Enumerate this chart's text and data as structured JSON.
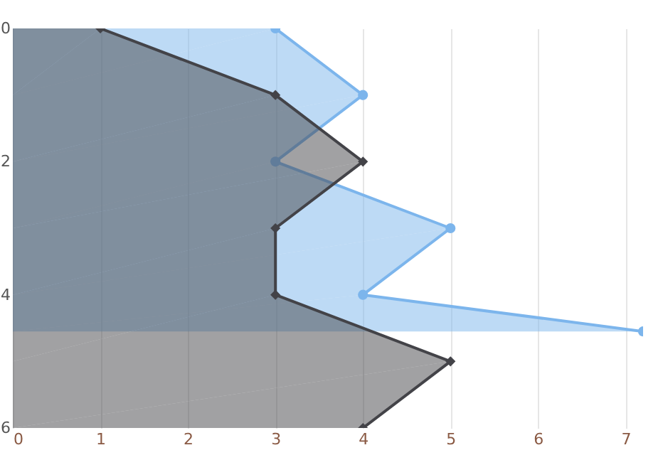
{
  "chart_data": {
    "type": "area",
    "orientation": "horizontal",
    "xlim": [
      0,
      7.2
    ],
    "xticks": [
      0,
      1,
      2,
      3,
      4,
      5,
      6,
      7
    ],
    "ylim": [
      6,
      0
    ],
    "yticks": [
      0,
      2,
      4,
      6
    ],
    "grid": "x",
    "series": [
      {
        "color": "#7cb5ec",
        "marker": "circle",
        "x": [
          0,
          1,
          2,
          3,
          4,
          4.55
        ],
        "values": [
          3,
          4,
          3,
          5,
          4,
          7.2
        ]
      },
      {
        "color": "#434348",
        "marker": "diamond",
        "x": [
          0,
          1,
          2,
          3,
          4,
          5,
          6
        ],
        "values": [
          1,
          3,
          4,
          3,
          3,
          5,
          4
        ]
      }
    ]
  }
}
